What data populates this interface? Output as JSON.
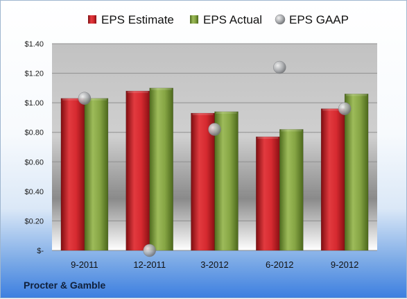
{
  "chart_data": {
    "type": "bar",
    "categories": [
      "9-2011",
      "12-2011",
      "3-2012",
      "6-2012",
      "9-2012"
    ],
    "series": [
      {
        "name": "EPS Estimate",
        "kind": "bar",
        "color": "#cc1f26",
        "values": [
          1.03,
          1.08,
          0.93,
          0.77,
          0.96
        ]
      },
      {
        "name": "EPS Actual",
        "kind": "bar",
        "color": "#7e9e3a",
        "values": [
          1.03,
          1.1,
          0.94,
          0.82,
          1.06
        ]
      },
      {
        "name": "EPS GAAP",
        "kind": "scatter",
        "color": "#a8aaad",
        "values": [
          1.03,
          0.0,
          0.82,
          1.24,
          0.96
        ]
      }
    ],
    "yticks": [
      "$-",
      "$0.20",
      "$0.40",
      "$0.60",
      "$0.80",
      "$1.00",
      "$1.20",
      "$1.40"
    ],
    "ylim": [
      0,
      1.4
    ],
    "grid": true,
    "legend_position": "top"
  },
  "footer": {
    "company": "Procter & Gamble"
  }
}
